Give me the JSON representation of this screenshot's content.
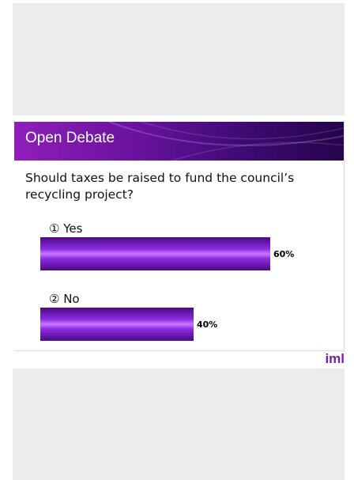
{
  "slide": {
    "title": "Open Debate",
    "question": "Should taxes be raised to fund the council’s recycling project?"
  },
  "chart_data": {
    "type": "bar",
    "orientation": "horizontal",
    "categories": [
      "① Yes",
      "② No"
    ],
    "values": [
      60,
      40
    ],
    "value_labels": [
      "60%",
      "40%"
    ],
    "unit": "%",
    "xlim": [
      0,
      100
    ],
    "bar_color": "#8a2be2"
  },
  "brand": {
    "logo": "iml",
    "color": "#7b1fa2"
  }
}
